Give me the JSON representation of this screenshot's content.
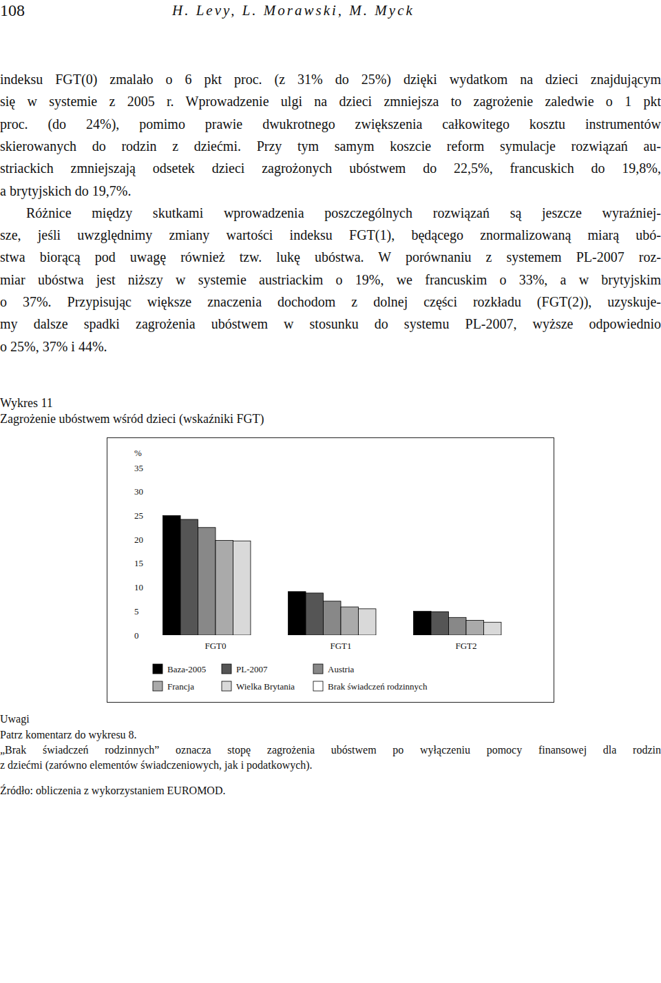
{
  "header": {
    "page": "108",
    "authors": "H. Levy, L. Morawski, M. Myck"
  },
  "body_before": [
    [
      "indeksu FGT(0) zmalało o 6 pkt proc. (z 31% do 25%) dzięki wydatkom na dzieci znajdującym",
      "się w systemie z 2005 r. Wprowadzenie ulgi na dzieci zmniejsza to zagrożenie zaledwie o 1 pkt",
      "proc. (do 24%), pomimo prawie dwukrotnego zwiększenia całkowitego kosztu instrumentów",
      "skierowanych do rodzin z dziećmi. Przy tym samym koszcie reform symulacje rozwiązań au-",
      "striackich zmniejszają odsetek dzieci zagrożonych ubóstwem do 22,5%, francuskich do 19,8%,",
      "a brytyjskich do 19,7%."
    ],
    [
      "Różnice między skutkami wprowadzenia poszczególnych rozwiązań są jeszcze wyraźniej-",
      "sze, jeśli uwzględnimy zmiany wartości indeksu FGT(1), będącego znormalizowaną miarą ubó-",
      "stwa biorącą pod uwagę również tzw. lukę ubóstwa. W porównaniu z systemem PL-2007 roz-",
      "miar ubóstwa jest niższy w systemie austriackim o 19%, we francuskim o 33%, a w brytyjskim",
      "o 37%. Przypisując większe znaczenia dochodom z dolnej części rozkładu (FGT(2)), uzyskuje-",
      "my dalsze spadki zagrożenia ubóstwem w stosunku do systemu PL-2007, wyższe odpowiednio",
      "o 25%, 37% i 44%."
    ]
  ],
  "figure": {
    "label": "Wykres 11",
    "caption": "Zagrożenie ubóstwem wśród dzieci (wskaźniki FGT)",
    "notes_heading": "Uwagi",
    "notes": [
      "Patrz komentarz do wykresu 8.",
      "„Brak świadczeń rodzinnych” oznacza stopę zagrożenia ubóstwem po wyłączeniu pomocy finansowej dla rodzin",
      "z dziećmi (zarówno elementów świadczeniowych, jak i podatkowych)."
    ],
    "source": "Źródło: obliczenia z wykorzystaniem EUROMOD."
  },
  "chart_data": {
    "type": "bar",
    "y_label": "%",
    "categories": [
      "FGT0",
      "FGT1",
      "FGT2"
    ],
    "series": [
      {
        "name": "Baza-2005",
        "color": "#000000",
        "values": [
          25,
          9.1,
          5.0
        ]
      },
      {
        "name": "PL-2007",
        "color": "#555555",
        "values": [
          24.2,
          8.8,
          4.9
        ]
      },
      {
        "name": "Austria",
        "color": "#888888",
        "values": [
          22.5,
          7.1,
          3.7
        ]
      },
      {
        "name": "Francja",
        "color": "#aaaaaa",
        "values": [
          19.8,
          5.9,
          3.1
        ]
      },
      {
        "name": "Wielka Brytania",
        "color": "#d9d9d9",
        "values": [
          19.7,
          5.5,
          2.7
        ]
      },
      {
        "name": "Brak świadczeń rodzinnych",
        "color": "#ffffff",
        "values": [
          null,
          null,
          null
        ]
      }
    ],
    "ylim": [
      0,
      35
    ],
    "yticks": [
      0,
      5,
      10,
      15,
      20,
      25,
      30,
      35
    ],
    "grid": false,
    "legend": "bottom"
  }
}
